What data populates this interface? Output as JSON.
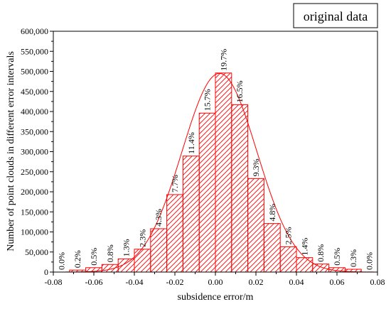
{
  "chart_data": {
    "type": "bar",
    "title": "",
    "legend": {
      "label": "original data",
      "placement": "top-right"
    },
    "xlabel": "subsidence error/m",
    "ylabel": "Number of point clouds in different error intervals",
    "xlim": [
      -0.08,
      0.08
    ],
    "ylim": [
      0,
      600000
    ],
    "x_ticks": [
      "-0.08",
      "-0.06",
      "-0.04",
      "-0.02",
      "0.00",
      "0.02",
      "0.04",
      "0.06",
      "0.08"
    ],
    "y_ticks": [
      "0",
      "50,000",
      "100,000",
      "150,000",
      "200,000",
      "250,000",
      "300,000",
      "350,000",
      "400,000",
      "450,000",
      "500,000",
      "550,000",
      "600,000"
    ],
    "bin_width": 0.008,
    "bin_centers": [
      -0.076,
      -0.068,
      -0.06,
      -0.052,
      -0.044,
      -0.036,
      -0.028,
      -0.02,
      -0.012,
      -0.004,
      0.004,
      0.012,
      0.02,
      0.028,
      0.036,
      0.044,
      0.052,
      0.06,
      0.068,
      0.076
    ],
    "values": [
      0,
      5000,
      11000,
      19000,
      33000,
      57000,
      108000,
      193000,
      289000,
      396000,
      496000,
      417000,
      233000,
      121000,
      63000,
      36000,
      20000,
      11000,
      7000,
      0
    ],
    "percent_labels": [
      "0.0%",
      "0.2%",
      "0.5%",
      "0.8%",
      "1.3%",
      "2.3%",
      "4.3%",
      "7.7%",
      "11.4%",
      "15.7%",
      "19.7%",
      "16.5%",
      "9.3%",
      "4.8%",
      "2.5%",
      "1.4%",
      "0.8%",
      "0.5%",
      "0.3%",
      "0.0%"
    ],
    "fit_curve": {
      "type": "normal",
      "mean": 0.002,
      "std": 0.0185,
      "peak": 495000
    },
    "colors": {
      "bar": "#ff0000",
      "curve": "#ff0000",
      "axis": "#000000"
    }
  }
}
